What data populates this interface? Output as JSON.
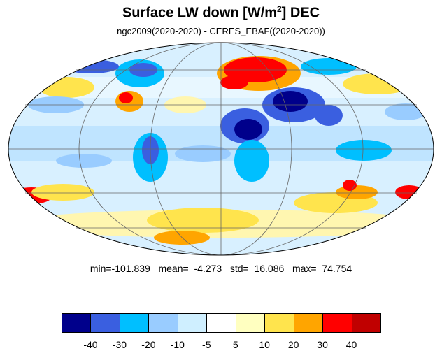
{
  "title": {
    "main": "Surface LW down [W/m",
    "sup": "2",
    "suffix": "]  DEC"
  },
  "subtitle": "ngc2009(2020-2020) - CERES_EBAF((2020-2020))",
  "stats": {
    "text": "min=-101.839   mean=  -4.273   std=  16.086   max=  74.754"
  },
  "colorbar": {
    "colors": [
      "#00008b",
      "#3a5fe0",
      "#00bfff",
      "#99ccff",
      "#cfefff",
      "#ffffff",
      "#ffffc0",
      "#ffe44d",
      "#ffa500",
      "#ff0000",
      "#c00000"
    ],
    "labels": [
      "-40",
      "-30",
      "-20",
      "-10",
      "-5",
      "5",
      "10",
      "20",
      "30",
      "40"
    ]
  }
}
